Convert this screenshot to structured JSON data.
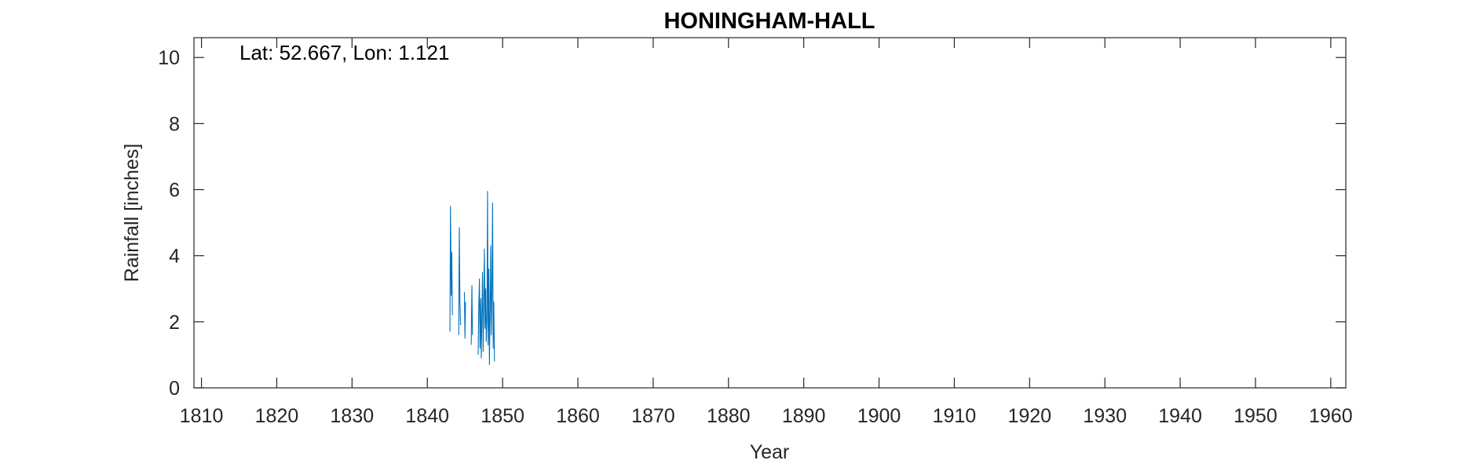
{
  "chart_data": {
    "type": "line",
    "title": "HONINGHAM-HALL",
    "xlabel": "Year",
    "ylabel": "Rainfall [inches]",
    "annotation": "Lat: 52.667, Lon: 1.121",
    "xlim": [
      1809,
      1962
    ],
    "ylim": [
      0,
      10.6
    ],
    "xticks": [
      1810,
      1820,
      1830,
      1840,
      1850,
      1860,
      1870,
      1880,
      1890,
      1900,
      1910,
      1920,
      1930,
      1940,
      1950,
      1960
    ],
    "yticks": [
      0,
      2,
      4,
      6,
      8,
      10
    ],
    "grid": false,
    "box": true,
    "series": [
      {
        "color": "#0072BD",
        "segments": [
          [
            [
              1843.0,
              1.7
            ],
            [
              1843.08,
              5.5
            ],
            [
              1843.17,
              2.8
            ],
            [
              1843.25,
              4.1
            ],
            [
              1843.33,
              2.2
            ]
          ],
          [
            [
              1844.17,
              1.6
            ],
            [
              1844.25,
              4.85
            ],
            [
              1844.33,
              2.6
            ],
            [
              1844.42,
              1.9
            ]
          ],
          [
            [
              1844.92,
              2.9
            ],
            [
              1845.0,
              1.5
            ],
            [
              1845.08,
              2.6
            ]
          ],
          [
            [
              1845.83,
              1.3
            ],
            [
              1845.92,
              3.1
            ],
            [
              1846.0,
              1.6
            ]
          ],
          [
            [
              1846.75,
              1.0
            ],
            [
              1846.83,
              2.4
            ],
            [
              1846.92,
              3.3
            ],
            [
              1847.0,
              1.2
            ],
            [
              1847.08,
              2.7
            ],
            [
              1847.17,
              0.9
            ],
            [
              1847.25,
              2.2
            ],
            [
              1847.33,
              3.5
            ],
            [
              1847.42,
              1.1
            ],
            [
              1847.5,
              2.6
            ],
            [
              1847.58,
              4.2
            ],
            [
              1847.67,
              1.8
            ],
            [
              1847.75,
              3.0
            ],
            [
              1847.83,
              1.4
            ],
            [
              1847.92,
              2.1
            ],
            [
              1848.0,
              5.95
            ],
            [
              1848.08,
              1.3
            ],
            [
              1848.17,
              3.6
            ],
            [
              1848.25,
              0.7
            ],
            [
              1848.33,
              2.2
            ],
            [
              1848.42,
              4.3
            ],
            [
              1848.5,
              1.6
            ],
            [
              1848.58,
              2.9
            ],
            [
              1848.67,
              5.6
            ],
            [
              1848.75,
              1.2
            ],
            [
              1848.83,
              2.6
            ],
            [
              1848.92,
              0.8
            ]
          ]
        ]
      }
    ]
  }
}
